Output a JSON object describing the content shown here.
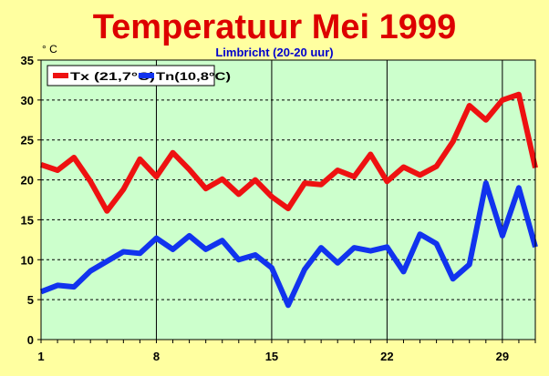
{
  "colors": {
    "background": "#ffffa0",
    "plot_background": "#ccffcc",
    "title": "#dd0000",
    "subtitle": "#0000cc",
    "tx": "#ee1111",
    "tn": "#1133ee",
    "grid": "#000000"
  },
  "chart_data": {
    "type": "line",
    "title": "Temperatuur Mei 1999",
    "subtitle": "Limbricht (20-20 uur)",
    "ylabel": "° C",
    "xlabel": "",
    "xlim": [
      1,
      31
    ],
    "ylim": [
      0,
      35
    ],
    "x_ticks": [
      1,
      8,
      15,
      22,
      29
    ],
    "y_ticks": [
      0,
      5,
      10,
      15,
      20,
      25,
      30,
      35
    ],
    "grid": true,
    "legend_position": "top-left",
    "x": [
      1,
      2,
      3,
      4,
      5,
      6,
      7,
      8,
      9,
      10,
      11,
      12,
      13,
      14,
      15,
      16,
      17,
      18,
      19,
      20,
      21,
      22,
      23,
      24,
      25,
      26,
      27,
      28,
      29,
      30,
      31
    ],
    "series": [
      {
        "name": "Tx (21,7°C)",
        "color": "#ee1111",
        "values": [
          21.9,
          21.2,
          22.8,
          19.8,
          16.1,
          18.8,
          22.6,
          20.4,
          23.4,
          21.3,
          18.9,
          20.1,
          18.2,
          20.0,
          17.9,
          16.4,
          19.6,
          19.4,
          21.2,
          20.4,
          23.2,
          19.8,
          21.6,
          20.6,
          21.7,
          24.8,
          29.3,
          27.5,
          30.0,
          30.7,
          21.5
        ]
      },
      {
        "name": "Tn(10,8°C)",
        "color": "#1133ee",
        "values": [
          6.0,
          6.8,
          6.6,
          8.6,
          9.8,
          11.0,
          10.8,
          12.7,
          11.3,
          13.0,
          11.3,
          12.4,
          10.0,
          10.6,
          9.0,
          4.3,
          8.8,
          11.5,
          9.6,
          11.5,
          11.1,
          11.6,
          8.5,
          13.2,
          12.0,
          7.6,
          9.4,
          19.6,
          13.0,
          19.0,
          11.6
        ]
      }
    ]
  }
}
